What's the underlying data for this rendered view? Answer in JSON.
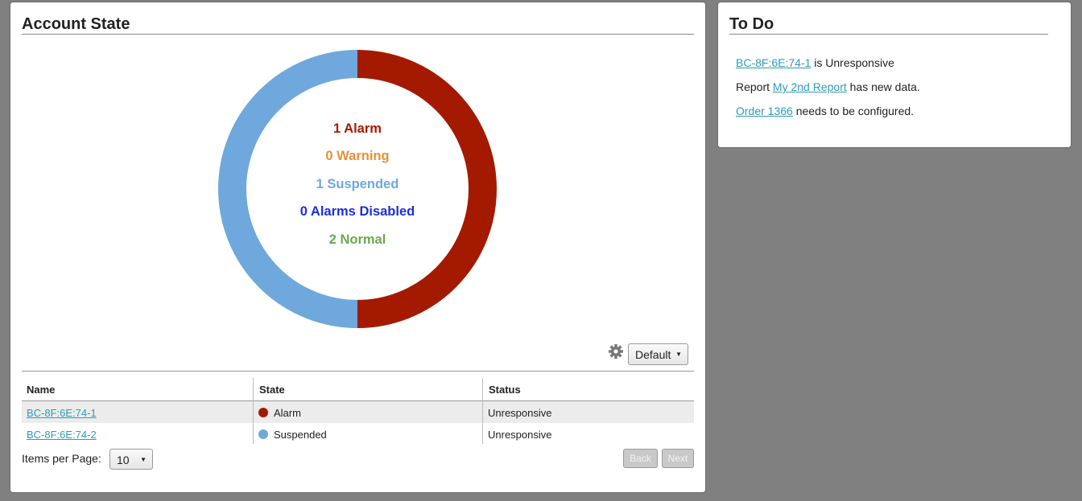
{
  "account_panel": {
    "title": "Account State",
    "chart_data": {
      "type": "pie",
      "style": "donut",
      "slices": [
        {
          "label": "Alarm",
          "value": 1,
          "color": "#a31a00"
        },
        {
          "label": "Suspended",
          "value": 1,
          "color": "#6fa8dc"
        }
      ],
      "center_lines": [
        {
          "count": "1",
          "label": "Alarm",
          "color": "#a31a00"
        },
        {
          "count": "0",
          "label": "Warning",
          "color": "#e69138"
        },
        {
          "count": "1",
          "label": "Suspended",
          "color": "#6fa8dc"
        },
        {
          "count": "0",
          "label": "Alarms Disabled",
          "color": "#1c2fe0"
        },
        {
          "count": "2",
          "label": "Normal",
          "color": "#6aa84f"
        }
      ]
    },
    "view_select": {
      "value": "Default",
      "icon": "gear-icon"
    },
    "table": {
      "headers": [
        "Name",
        "State",
        "Status"
      ],
      "rows": [
        {
          "name": "BC-8F:6E:74-1",
          "state": "Alarm",
          "state_color": "#a31a00",
          "status": "Unresponsive"
        },
        {
          "name": "BC-8F:6E:74-2",
          "state": "Suspended",
          "state_color": "#6fa8dc",
          "status": "Unresponsive"
        }
      ]
    },
    "footer": {
      "items_per_page_label": "Items per Page:",
      "items_per_page_value": "10",
      "back_label": "Back",
      "next_label": "Next"
    }
  },
  "todo_panel": {
    "title": "To Do",
    "items": [
      {
        "prefix": "",
        "link": "BC-8F:6E:74-1",
        "suffix": " is Unresponsive"
      },
      {
        "prefix": "Report ",
        "link": "My 2nd Report",
        "suffix": " has new data."
      },
      {
        "prefix": "",
        "link": "Order 1366",
        "suffix": " needs to be configured."
      }
    ]
  }
}
